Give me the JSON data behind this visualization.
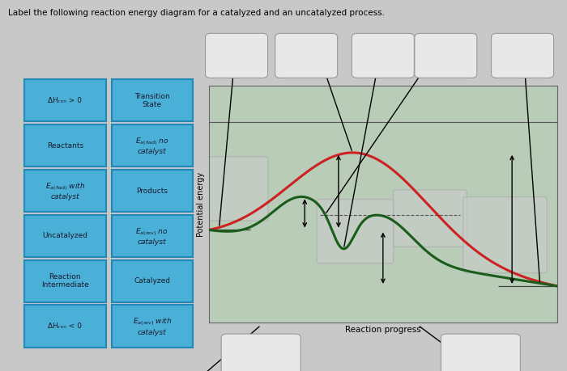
{
  "title": "Label the following reaction energy diagram for a catalyzed and an uncatalyzed process.",
  "xlabel": "Reaction progress",
  "ylabel": "Potential energy",
  "fig_bg_color": "#c8c8c8",
  "plot_bg_color": "#b8ccb8",
  "red_curve_color": "#cc2222",
  "green_curve_color": "#1a5c1a",
  "button_bg": "#4ab0d8",
  "button_border": "#2288bb",
  "button_text_color": "#1a1a2e",
  "left_buttons": [
    [
      "ΔHᵣₓₙ > 0",
      "Transition\nState"
    ],
    [
      "Reactants",
      "$E_{a(fwd)}$ no\ncatalyst"
    ],
    [
      "$E_{a(fwd)}$ with\ncatalyst",
      "Products"
    ],
    [
      "Uncatalyzed",
      "$E_{a(rev)}$ no\ncatalyst"
    ],
    [
      "Reaction\nIntermediate",
      "Catalyzed"
    ],
    [
      "ΔHᵣₓₙ < 0",
      "$E_{a(rev)}$ with\ncatalyst"
    ]
  ],
  "reactant_energy": 0.38,
  "product_energy": 0.12,
  "uncatalyzed_peak": 0.88,
  "catalyzed_peak1": 0.6,
  "catalyzed_peak2": 0.57,
  "intermediate_energy": 0.45,
  "ylim": [
    -0.05,
    1.05
  ],
  "xlim": [
    0,
    1
  ]
}
